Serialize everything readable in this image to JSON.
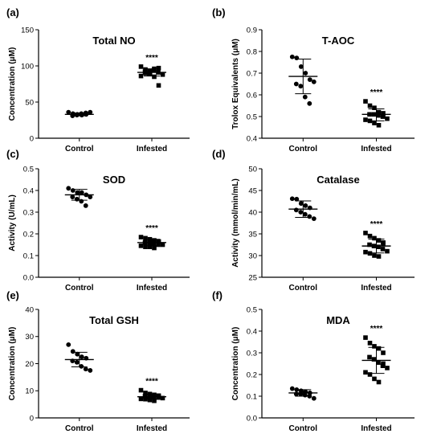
{
  "figure": {
    "panels": [
      {
        "letter": "(a)",
        "chart_key": "a",
        "significance": "****"
      },
      {
        "letter": "(b)",
        "chart_key": "b",
        "significance": "****"
      },
      {
        "letter": "(c)",
        "chart_key": "c",
        "significance": "****"
      },
      {
        "letter": "(d)",
        "chart_key": "d",
        "significance": "****"
      },
      {
        "letter": "(e)",
        "chart_key": "e",
        "significance": "****"
      },
      {
        "letter": "(f)",
        "chart_key": "f",
        "significance": "****"
      }
    ]
  },
  "chart_data": [
    {
      "type": "scatter",
      "title": "Total NO",
      "xlabel": "",
      "ylabel": "Concentration (μM)",
      "categories": [
        "Control",
        "Infested"
      ],
      "ylim": [
        0,
        150
      ],
      "yticks": [
        "0",
        "50",
        "100",
        "150"
      ],
      "series": [
        {
          "category": "Control",
          "marker": "circle",
          "mean": 33,
          "sd_low": 31,
          "sd_high": 35,
          "values": [
            36,
            34,
            33,
            32,
            33,
            31,
            32,
            34,
            35,
            36
          ]
        },
        {
          "category": "Infested",
          "marker": "square",
          "mean": 91,
          "sd_low": 86,
          "sd_high": 96,
          "values": [
            99,
            95,
            93,
            96,
            97,
            92,
            89,
            94,
            91,
            88,
            86,
            90,
            92,
            85,
            73
          ]
        }
      ]
    },
    {
      "type": "scatter",
      "title": "T-AOC",
      "xlabel": "",
      "ylabel": "Trolox Equivalents (μM)",
      "categories": [
        "Control",
        "Infested"
      ],
      "ylim": [
        0.4,
        0.9
      ],
      "yticks": [
        "0.4",
        "0.5",
        "0.6",
        "0.7",
        "0.8",
        "0.9"
      ],
      "series": [
        {
          "category": "Control",
          "marker": "circle",
          "mean": 0.685,
          "sd_low": 0.605,
          "sd_high": 0.765,
          "values": [
            0.775,
            0.77,
            0.73,
            0.7,
            0.67,
            0.65,
            0.64,
            0.59,
            0.56,
            0.66
          ]
        },
        {
          "category": "Infested",
          "marker": "square",
          "mean": 0.51,
          "sd_low": 0.48,
          "sd_high": 0.535,
          "values": [
            0.57,
            0.55,
            0.54,
            0.52,
            0.515,
            0.51,
            0.51,
            0.505,
            0.5,
            0.49,
            0.485,
            0.48,
            0.47,
            0.46,
            0.5
          ]
        }
      ]
    },
    {
      "type": "scatter",
      "title": "SOD",
      "xlabel": "",
      "ylabel": "Activity (U/mL)",
      "categories": [
        "Control",
        "Infested"
      ],
      "ylim": [
        0.0,
        0.5
      ],
      "yticks": [
        "0.0",
        "0.1",
        "0.2",
        "0.3",
        "0.4",
        "0.5"
      ],
      "series": [
        {
          "category": "Control",
          "marker": "circle",
          "mean": 0.38,
          "sd_low": 0.355,
          "sd_high": 0.405,
          "values": [
            0.41,
            0.4,
            0.39,
            0.39,
            0.38,
            0.37,
            0.36,
            0.35,
            0.33,
            0.37
          ]
        },
        {
          "category": "Infested",
          "marker": "square",
          "mean": 0.16,
          "sd_low": 0.145,
          "sd_high": 0.175,
          "values": [
            0.185,
            0.18,
            0.175,
            0.17,
            0.165,
            0.16,
            0.16,
            0.155,
            0.15,
            0.15,
            0.145,
            0.14,
            0.14,
            0.135,
            0.165
          ]
        }
      ]
    },
    {
      "type": "scatter",
      "title": "Catalase",
      "xlabel": "",
      "ylabel": "Activity (mmol/min/mL)",
      "categories": [
        "Control",
        "Infested"
      ],
      "ylim": [
        25,
        50
      ],
      "yticks": [
        "25",
        "30",
        "35",
        "40",
        "45",
        "50"
      ],
      "series": [
        {
          "category": "Control",
          "marker": "circle",
          "mean": 40.7,
          "sd_low": 38.8,
          "sd_high": 42.6,
          "values": [
            43.1,
            43,
            42,
            41.5,
            41,
            40.5,
            40,
            39.5,
            39,
            38.5
          ]
        },
        {
          "category": "Infested",
          "marker": "square",
          "mean": 32.2,
          "sd_low": 30.6,
          "sd_high": 33.8,
          "values": [
            35.2,
            34.5,
            34,
            33.5,
            33,
            32.5,
            32.2,
            32,
            31.5,
            31,
            30.8,
            30.5,
            30,
            29.8,
            32.8
          ]
        }
      ]
    },
    {
      "type": "scatter",
      "title": "Total GSH",
      "xlabel": "",
      "ylabel": "Concentration (μM)",
      "categories": [
        "Control",
        "Infested"
      ],
      "ylim": [
        0,
        40
      ],
      "yticks": [
        "0",
        "10",
        "20",
        "30",
        "40"
      ],
      "series": [
        {
          "category": "Control",
          "marker": "circle",
          "mean": 21.5,
          "sd_low": 18.8,
          "sd_high": 24.2,
          "values": [
            27,
            24.5,
            23.5,
            22.5,
            22,
            21,
            20.5,
            19,
            18,
            17.5
          ]
        },
        {
          "category": "Infested",
          "marker": "square",
          "mean": 7.8,
          "sd_low": 6.9,
          "sd_high": 8.7,
          "values": [
            10.2,
            9.2,
            8.8,
            8.5,
            8.2,
            8,
            7.8,
            7.6,
            7.5,
            7.3,
            7,
            6.9,
            6.6,
            6.3,
            8
          ]
        }
      ]
    },
    {
      "type": "scatter",
      "title": "MDA",
      "xlabel": "",
      "ylabel": "Concentration (μM)",
      "categories": [
        "Control",
        "Infested"
      ],
      "ylim": [
        0.0,
        0.5
      ],
      "yticks": [
        "0.0",
        "0.1",
        "0.2",
        "0.3",
        "0.4",
        "0.5"
      ],
      "series": [
        {
          "category": "Control",
          "marker": "circle",
          "mean": 0.115,
          "sd_low": 0.1,
          "sd_high": 0.13,
          "values": [
            0.135,
            0.13,
            0.125,
            0.12,
            0.115,
            0.11,
            0.11,
            0.105,
            0.1,
            0.09
          ]
        },
        {
          "category": "Infested",
          "marker": "square",
          "mean": 0.265,
          "sd_low": 0.205,
          "sd_high": 0.325,
          "values": [
            0.37,
            0.345,
            0.33,
            0.32,
            0.3,
            0.28,
            0.27,
            0.255,
            0.24,
            0.23,
            0.21,
            0.2,
            0.18,
            0.165,
            0.25
          ]
        }
      ]
    }
  ]
}
